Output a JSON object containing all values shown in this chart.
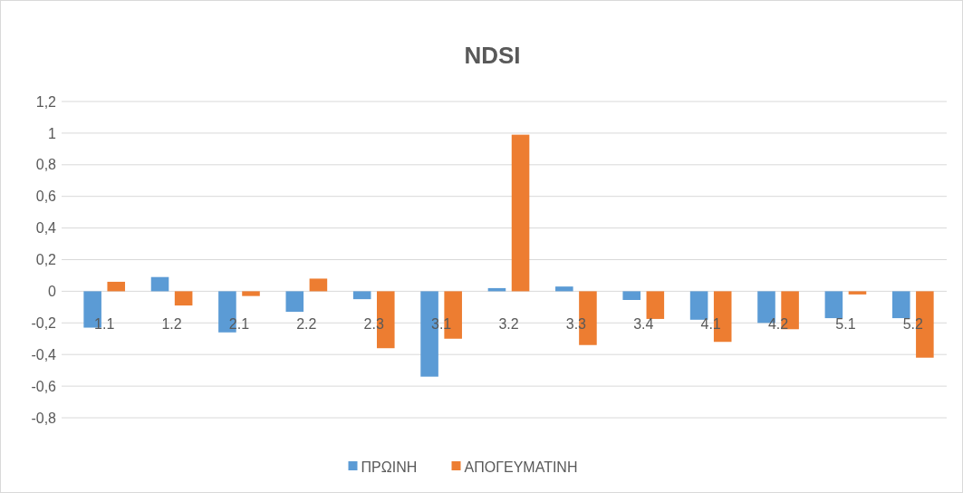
{
  "chart_data": {
    "type": "bar",
    "title": "NDSI",
    "categories": [
      "1.1",
      "1.2",
      "2.1",
      "2.2",
      "2.3",
      "3.1",
      "3.2",
      "3.3",
      "3.4",
      "4.1",
      "4.2",
      "5.1",
      "5.2"
    ],
    "series": [
      {
        "name": "ΠΡΩΙΝΗ",
        "color": "#5b9bd5",
        "values": [
          -0.23,
          0.09,
          -0.26,
          -0.13,
          -0.05,
          -0.54,
          0.02,
          0.03,
          -0.055,
          -0.18,
          -0.2,
          -0.17,
          -0.17
        ]
      },
      {
        "name": "ΑΠΟΓΕΥΜΑΤΙΝΗ",
        "color": "#ed7d31",
        "values": [
          0.06,
          -0.09,
          -0.03,
          0.08,
          -0.36,
          -0.3,
          0.99,
          -0.34,
          -0.175,
          -0.32,
          -0.24,
          -0.02,
          -0.42
        ]
      }
    ],
    "ylim": [
      -0.8,
      1.2
    ],
    "yticks": [
      {
        "value": -0.8,
        "label": "-0,8"
      },
      {
        "value": -0.6,
        "label": "-0,6"
      },
      {
        "value": -0.4,
        "label": "-0,4"
      },
      {
        "value": -0.2,
        "label": "-0,2"
      },
      0,
      {
        "value": 0.2,
        "label": "0,2"
      },
      {
        "value": 0.4,
        "label": "0,4"
      },
      {
        "value": 0.6,
        "label": "0,6"
      },
      {
        "value": 0.8,
        "label": "0,8"
      },
      1,
      {
        "value": 1.2,
        "label": "1,2"
      }
    ],
    "grid": "y",
    "legend": "bottom"
  }
}
